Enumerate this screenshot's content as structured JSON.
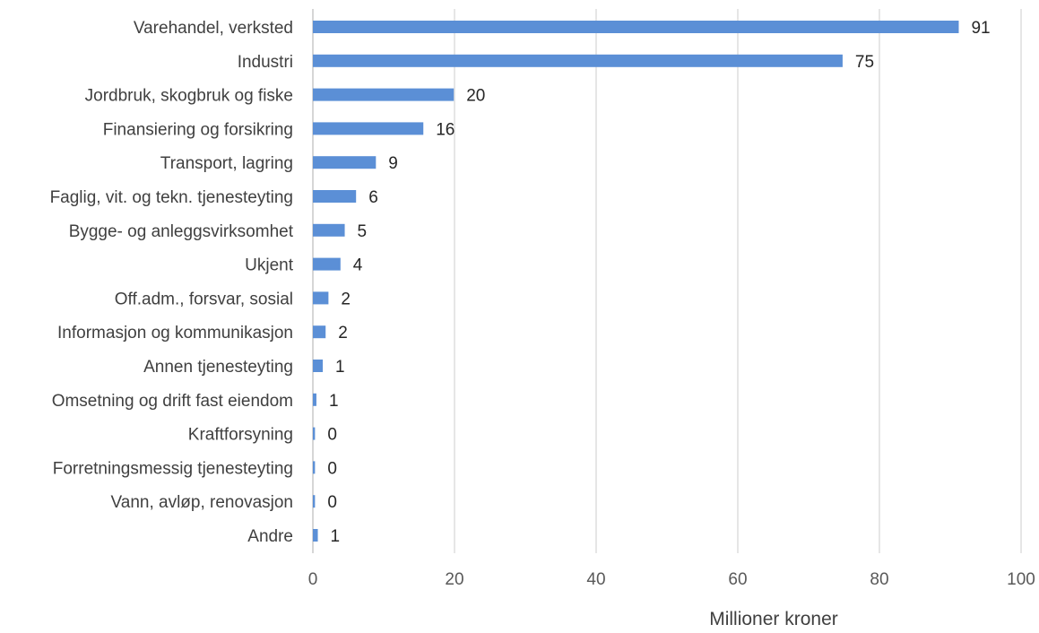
{
  "chart_data": {
    "type": "bar",
    "orientation": "horizontal",
    "categories": [
      "Varehandel, verksted",
      "Industri",
      "Jordbruk, skogbruk og fiske",
      "Finansiering og forsikring",
      "Transport, lagring",
      "Faglig, vit. og tekn. tjenesteyting",
      "Bygge- og anleggsvirksomhet",
      "Ukjent",
      "Off.adm., forsvar, sosial",
      "Informasjon og kommunikasjon",
      "Annen tjenesteyting",
      "Omsetning og drift fast eiendom",
      "Kraftforsyning",
      "Forretningsmessig tjenesteyting",
      "Vann, avløp, renovasjon",
      "Andre"
    ],
    "values": [
      91.2,
      74.8,
      19.9,
      15.6,
      8.9,
      6.1,
      4.5,
      3.9,
      2.2,
      1.8,
      1.4,
      0.5,
      0.3,
      0.3,
      0.3,
      0.7
    ],
    "data_labels": [
      "91",
      "75",
      "20",
      "16",
      "9",
      "6",
      "5",
      "4",
      "2",
      "2",
      "1",
      "1",
      "0",
      "0",
      "0",
      "1"
    ],
    "xlabel": "Millioner kroner",
    "ylabel": "",
    "title": "",
    "xlim": [
      0,
      100
    ],
    "x_ticks": [
      0,
      20,
      40,
      60,
      80,
      100
    ],
    "grid": "vertical",
    "legend": "none",
    "colors": {
      "bar": "#5b8fd6",
      "grid": "#d9d9d9"
    }
  }
}
